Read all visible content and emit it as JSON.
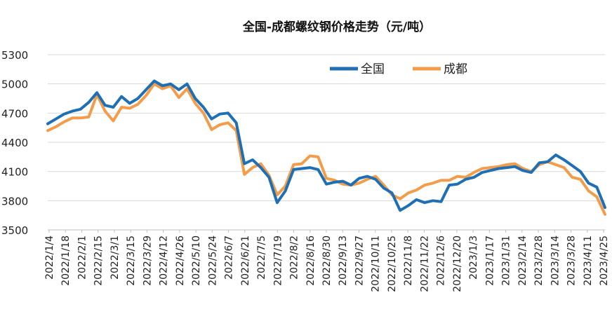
{
  "chart_data": {
    "type": "line",
    "title": "全国-成都螺纹钢价格走势（元/吨）",
    "xlabel": "",
    "ylabel": "",
    "ylim": [
      3500,
      5300
    ],
    "yticks": [
      3500,
      3800,
      4100,
      4400,
      4700,
      5000,
      5300
    ],
    "grid": true,
    "legend_position": "top-right",
    "x_tick_labels": [
      "2022/1/4",
      "2022/1/18",
      "2022/2/1",
      "2022/2/15",
      "2022/3/1",
      "2022/3/15",
      "2022/3/29",
      "2022/4/12",
      "2022/4/26",
      "2022/5/10",
      "2022/5/24",
      "2022/6/7",
      "2022/6/21",
      "2022/7/5",
      "2022/7/19",
      "2022/8/2",
      "2022/8/16",
      "2022/8/30",
      "2022/9/13",
      "2022/9/27",
      "2022/10/11",
      "2022/10/25",
      "2022/11/8",
      "2022/11/22",
      "2022/12/6",
      "2022/12/20",
      "2023/1/3",
      "2023/1/17",
      "2023/1/31",
      "2023/2/14",
      "2023/2/28",
      "2023/3/14",
      "2023/3/28",
      "2023/4/11",
      "2023/4/25"
    ],
    "x": [
      "2022/1/4",
      "2022/1/11",
      "2022/1/18",
      "2022/1/25",
      "2022/2/1",
      "2022/2/8",
      "2022/2/15",
      "2022/2/22",
      "2022/3/1",
      "2022/3/8",
      "2022/3/15",
      "2022/3/22",
      "2022/3/29",
      "2022/4/5",
      "2022/4/12",
      "2022/4/19",
      "2022/4/26",
      "2022/5/3",
      "2022/5/10",
      "2022/5/17",
      "2022/5/24",
      "2022/5/31",
      "2022/6/7",
      "2022/6/14",
      "2022/6/21",
      "2022/6/28",
      "2022/7/5",
      "2022/7/12",
      "2022/7/19",
      "2022/7/26",
      "2022/8/2",
      "2022/8/9",
      "2022/8/16",
      "2022/8/23",
      "2022/8/30",
      "2022/9/6",
      "2022/9/13",
      "2022/9/20",
      "2022/9/27",
      "2022/10/4",
      "2022/10/11",
      "2022/10/18",
      "2022/10/25",
      "2022/11/1",
      "2022/11/8",
      "2022/11/15",
      "2022/11/22",
      "2022/11/29",
      "2022/12/6",
      "2022/12/13",
      "2022/12/20",
      "2022/12/27",
      "2023/1/3",
      "2023/1/10",
      "2023/1/17",
      "2023/1/24",
      "2023/1/31",
      "2023/2/7",
      "2023/2/14",
      "2023/2/21",
      "2023/2/28",
      "2023/3/7",
      "2023/3/14",
      "2023/3/21",
      "2023/3/28",
      "2023/4/4",
      "2023/4/11",
      "2023/4/18",
      "2023/4/25"
    ],
    "series": [
      {
        "name": "全国",
        "color": "#1f6fb5",
        "values": [
          4590,
          4640,
          4690,
          4720,
          4740,
          4810,
          4910,
          4780,
          4760,
          4870,
          4800,
          4850,
          4940,
          5030,
          4980,
          5000,
          4940,
          5000,
          4850,
          4760,
          4640,
          4690,
          4700,
          4600,
          4180,
          4220,
          4140,
          4040,
          3780,
          3900,
          4120,
          4130,
          4140,
          4120,
          3970,
          3990,
          4000,
          3960,
          4030,
          4050,
          4020,
          3930,
          3880,
          3700,
          3750,
          3810,
          3780,
          3800,
          3790,
          3960,
          3970,
          4020,
          4040,
          4090,
          4110,
          4130,
          4140,
          4150,
          4110,
          4090,
          4190,
          4200,
          4270,
          4220,
          4160,
          4100,
          3980,
          3940,
          3730
        ]
      },
      {
        "name": "成都",
        "color": "#f39c4a",
        "values": [
          4520,
          4560,
          4610,
          4650,
          4650,
          4660,
          4890,
          4720,
          4620,
          4760,
          4750,
          4790,
          4880,
          5000,
          4950,
          4980,
          4860,
          4950,
          4800,
          4700,
          4530,
          4580,
          4600,
          4520,
          4070,
          4140,
          4180,
          4060,
          3860,
          3950,
          4170,
          4180,
          4260,
          4250,
          4030,
          4010,
          3970,
          3960,
          3980,
          4020,
          4050,
          3960,
          3860,
          3820,
          3880,
          3910,
          3960,
          3980,
          4010,
          4010,
          4050,
          4040,
          4090,
          4130,
          4140,
          4150,
          4170,
          4180,
          4130,
          4100,
          4170,
          4200,
          4170,
          4140,
          4040,
          4020,
          3900,
          3840,
          3660
        ]
      }
    ]
  }
}
